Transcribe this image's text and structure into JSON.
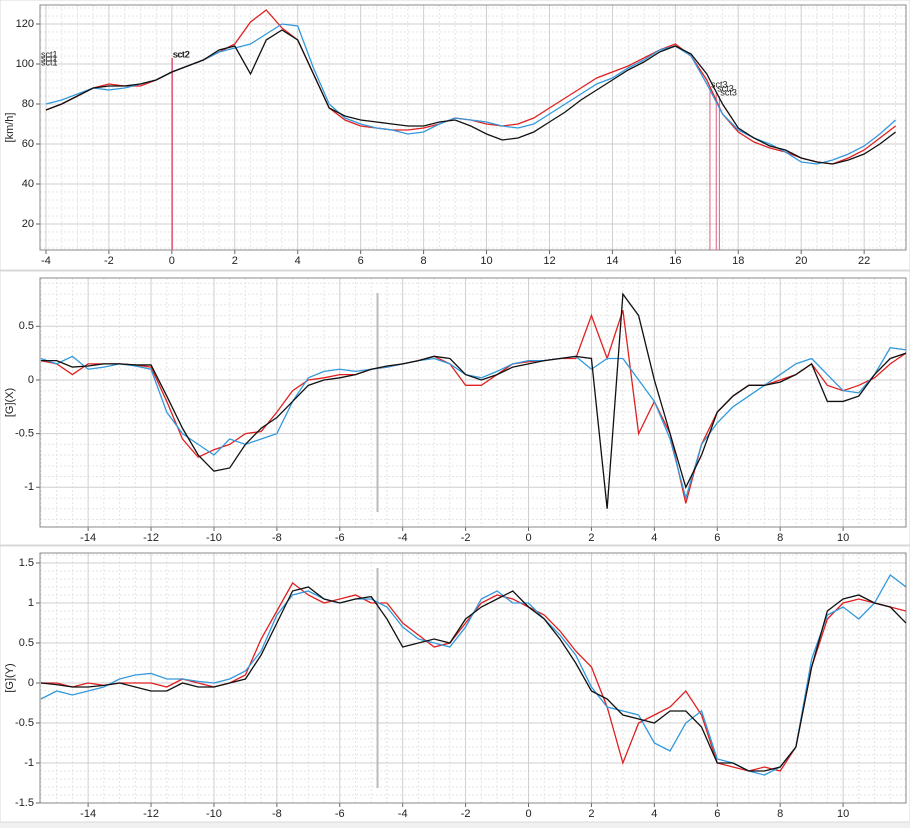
{
  "chart_data": [
    {
      "type": "line",
      "y_label": "[km/h]",
      "grid": true,
      "xlim": [
        -4.19,
        23.33
      ],
      "ylim": [
        7,
        129.5
      ],
      "xticks": [
        -4,
        -2,
        0,
        2,
        4,
        6,
        8,
        10,
        12,
        14,
        16,
        18,
        20,
        22
      ],
      "yticks": [
        20,
        40,
        60,
        80,
        100,
        120
      ],
      "x": [
        -4,
        -3.5,
        -3,
        -2.5,
        -2,
        -1.5,
        -1,
        -0.5,
        0,
        0.5,
        1,
        1.5,
        2,
        2.5,
        3,
        3.5,
        4,
        4.5,
        5,
        5.5,
        6,
        6.5,
        7,
        7.5,
        8,
        8.5,
        9,
        9.5,
        10,
        10.5,
        11,
        11.5,
        12,
        12.5,
        13,
        13.5,
        14,
        14.5,
        15,
        15.5,
        16,
        16.5,
        17,
        17.5,
        18,
        18.5,
        19,
        19.5,
        20,
        20.5,
        21,
        21.5,
        22,
        22.5,
        23
      ],
      "series": [
        {
          "color": "#e02020",
          "values": [
            77,
            80,
            84,
            88,
            90,
            89,
            89,
            92,
            96,
            99,
            102,
            106,
            110,
            121,
            127,
            118,
            112,
            95,
            78,
            72,
            69,
            68,
            67,
            67,
            68,
            70,
            73,
            72,
            70,
            69,
            70,
            73,
            78,
            83,
            88,
            93,
            96,
            99,
            103,
            107,
            110,
            104,
            92,
            75,
            66,
            61,
            58,
            56,
            53,
            51,
            50,
            53,
            57,
            63,
            69
          ]
        },
        {
          "color": "#3399dd",
          "values": [
            80,
            82,
            85,
            88,
            87,
            88,
            90,
            92,
            96,
            99,
            102,
            106,
            108,
            110,
            115,
            120,
            119,
            98,
            80,
            73,
            70,
            68,
            67,
            65,
            66,
            70,
            73,
            72,
            71,
            69,
            68,
            70,
            75,
            80,
            85,
            90,
            93,
            98,
            102,
            107,
            109,
            104,
            90,
            75,
            67,
            63,
            60,
            56,
            51,
            50,
            52,
            55,
            59,
            65,
            72
          ]
        },
        {
          "color": "#111111",
          "values": [
            77,
            80,
            84,
            88,
            89,
            89,
            90,
            92,
            96,
            99,
            102,
            107,
            109,
            95,
            112,
            117,
            112,
            95,
            78,
            74,
            72,
            71,
            70,
            69,
            69,
            71,
            72,
            69,
            65,
            62,
            63,
            66,
            71,
            76,
            82,
            87,
            92,
            97,
            101,
            106,
            109,
            105,
            95,
            80,
            68,
            63,
            59,
            57,
            53,
            51,
            50,
            52,
            55,
            60,
            66
          ]
        }
      ],
      "markers": [
        {
          "label": "sct1",
          "x": -4.19,
          "y": 103
        },
        {
          "label": "sct1",
          "x": -4.19,
          "y": 101
        },
        {
          "label": "sct1",
          "x": -4.19,
          "y": 99
        },
        {
          "label": "sct2",
          "x": 0,
          "y": 103
        },
        {
          "label": "sct2",
          "x": 0.02,
          "y": 103
        },
        {
          "label": "sct3",
          "x": 17.1,
          "y": 88
        },
        {
          "label": "sct3",
          "x": 17.3,
          "y": 86
        },
        {
          "label": "sct3",
          "x": 17.4,
          "y": 84
        }
      ]
    },
    {
      "type": "line",
      "y_label": "[G](X)",
      "grid": true,
      "xlim": [
        -15.53,
        12.0
      ],
      "ylim": [
        -1.37,
        0.95
      ],
      "xticks": [
        -14,
        -12,
        -10,
        -8,
        -6,
        -4,
        -2,
        0,
        2,
        4,
        6,
        8,
        10
      ],
      "yticks": [
        -1,
        -0.5,
        0,
        0.5
      ],
      "cursor_x": -4.8,
      "x": [
        -15.5,
        -15,
        -14.5,
        -14,
        -13.5,
        -13,
        -12.5,
        -12,
        -11.5,
        -11,
        -10.5,
        -10,
        -9.5,
        -9,
        -8.5,
        -8,
        -7.5,
        -7,
        -6.5,
        -6,
        -5.5,
        -5,
        -4.5,
        -4,
        -3.5,
        -3,
        -2.5,
        -2,
        -1.5,
        -1,
        -0.5,
        0,
        0.5,
        1,
        1.5,
        2,
        2.5,
        3,
        3.5,
        4,
        4.5,
        5,
        5.5,
        6,
        6.5,
        7,
        7.5,
        8,
        8.5,
        9,
        9.5,
        10,
        10.5,
        11,
        11.5,
        12
      ],
      "series": [
        {
          "color": "#e02020",
          "values": [
            0.18,
            0.15,
            0.05,
            0.15,
            0.15,
            0.15,
            0.14,
            0.12,
            -0.2,
            -0.55,
            -0.72,
            -0.65,
            -0.6,
            -0.5,
            -0.48,
            -0.3,
            -0.1,
            0.0,
            0.02,
            0.05,
            0.05,
            0.1,
            0.12,
            0.15,
            0.18,
            0.22,
            0.15,
            -0.05,
            -0.05,
            0.05,
            0.15,
            0.17,
            0.18,
            0.2,
            0.2,
            0.6,
            0.2,
            0.65,
            -0.5,
            -0.2,
            -0.5,
            -1.15,
            -0.6,
            -0.3,
            -0.15,
            -0.05,
            -0.05,
            0.0,
            0.05,
            0.15,
            -0.05,
            -0.1,
            -0.05,
            0.02,
            0.15,
            0.25
          ]
        },
        {
          "color": "#3399dd",
          "values": [
            0.2,
            0.15,
            0.22,
            0.1,
            0.12,
            0.15,
            0.13,
            0.1,
            -0.3,
            -0.5,
            -0.6,
            -0.7,
            -0.55,
            -0.6,
            -0.55,
            -0.5,
            -0.2,
            0.02,
            0.08,
            0.1,
            0.08,
            0.1,
            0.12,
            0.15,
            0.18,
            0.2,
            0.15,
            0.05,
            0.02,
            0.08,
            0.15,
            0.18,
            0.18,
            0.2,
            0.22,
            0.1,
            0.2,
            0.2,
            0.0,
            -0.2,
            -0.55,
            -1.1,
            -0.6,
            -0.4,
            -0.25,
            -0.15,
            -0.05,
            0.05,
            0.15,
            0.2,
            0.05,
            -0.1,
            -0.12,
            0.05,
            0.3,
            0.28
          ]
        },
        {
          "color": "#111111",
          "values": [
            0.18,
            0.18,
            0.12,
            0.13,
            0.15,
            0.15,
            0.14,
            0.14,
            -0.15,
            -0.45,
            -0.7,
            -0.85,
            -0.82,
            -0.6,
            -0.45,
            -0.35,
            -0.2,
            -0.05,
            0.0,
            0.02,
            0.05,
            0.1,
            0.13,
            0.15,
            0.18,
            0.22,
            0.2,
            0.05,
            0.0,
            0.05,
            0.12,
            0.15,
            0.18,
            0.2,
            0.22,
            0.2,
            -1.2,
            0.8,
            0.6,
            0.0,
            -0.5,
            -1.0,
            -0.7,
            -0.3,
            -0.15,
            -0.05,
            -0.05,
            -0.02,
            0.05,
            0.15,
            -0.2,
            -0.2,
            -0.15,
            0.05,
            0.2,
            0.25
          ]
        }
      ]
    },
    {
      "type": "line",
      "y_label": "[G](Y)",
      "grid": true,
      "xlim": [
        -15.53,
        12.0
      ],
      "ylim": [
        -1.5,
        1.625
      ],
      "xticks": [
        -14,
        -12,
        -10,
        -8,
        -6,
        -4,
        -2,
        0,
        2,
        4,
        6,
        8,
        10
      ],
      "yticks": [
        -1.5,
        -1,
        -0.5,
        0,
        0.5,
        1,
        1.5
      ],
      "cursor_x": -4.8,
      "x": [
        -15.5,
        -15,
        -14.5,
        -14,
        -13.5,
        -13,
        -12.5,
        -12,
        -11.5,
        -11,
        -10.5,
        -10,
        -9.5,
        -9,
        -8.5,
        -8,
        -7.5,
        -7,
        -6.5,
        -6,
        -5.5,
        -5,
        -4.5,
        -4,
        -3.5,
        -3,
        -2.5,
        -2,
        -1.5,
        -1,
        -0.5,
        0,
        0.5,
        1,
        1.5,
        2,
        2.5,
        3,
        3.5,
        4,
        4.5,
        5,
        5.5,
        6,
        6.5,
        7,
        7.5,
        8,
        8.5,
        9,
        9.5,
        10,
        10.5,
        11,
        11.5,
        12
      ],
      "series": [
        {
          "color": "#e02020",
          "values": [
            0.0,
            0.0,
            -0.05,
            0.0,
            -0.03,
            0.0,
            0.0,
            0.0,
            -0.05,
            0.05,
            0.0,
            -0.05,
            0.0,
            0.1,
            0.55,
            0.9,
            1.25,
            1.1,
            1.0,
            1.05,
            1.1,
            1.0,
            1.0,
            0.75,
            0.6,
            0.45,
            0.5,
            0.75,
            1.0,
            1.1,
            1.05,
            0.95,
            0.85,
            0.65,
            0.4,
            0.2,
            -0.3,
            -1.0,
            -0.5,
            -0.4,
            -0.3,
            -0.1,
            -0.4,
            -1.0,
            -1.05,
            -1.1,
            -1.05,
            -1.1,
            -0.8,
            0.2,
            0.8,
            1.0,
            1.05,
            1.0,
            0.95,
            0.9
          ]
        },
        {
          "color": "#3399dd",
          "values": [
            -0.2,
            -0.1,
            -0.15,
            -0.1,
            -0.05,
            0.05,
            0.1,
            0.12,
            0.05,
            0.05,
            0.02,
            0.0,
            0.05,
            0.15,
            0.4,
            0.85,
            1.1,
            1.15,
            1.05,
            1.0,
            1.05,
            1.05,
            0.95,
            0.7,
            0.55,
            0.5,
            0.45,
            0.7,
            1.05,
            1.15,
            1.0,
            1.0,
            0.8,
            0.6,
            0.35,
            -0.05,
            -0.3,
            -0.35,
            -0.4,
            -0.75,
            -0.85,
            -0.5,
            -0.35,
            -0.95,
            -1.0,
            -1.1,
            -1.15,
            -1.05,
            -0.8,
            0.3,
            0.85,
            0.95,
            0.8,
            1.0,
            1.35,
            1.2
          ]
        },
        {
          "color": "#111111",
          "values": [
            0.0,
            -0.02,
            -0.05,
            -0.05,
            -0.03,
            0.0,
            -0.05,
            -0.1,
            -0.1,
            0.0,
            -0.05,
            -0.05,
            0.0,
            0.05,
            0.35,
            0.75,
            1.15,
            1.2,
            1.05,
            1.0,
            1.05,
            1.08,
            0.8,
            0.45,
            0.5,
            0.55,
            0.5,
            0.8,
            0.95,
            1.05,
            1.15,
            0.95,
            0.8,
            0.55,
            0.25,
            -0.1,
            -0.2,
            -0.4,
            -0.45,
            -0.5,
            -0.35,
            -0.35,
            -0.55,
            -1.0,
            -1.0,
            -1.1,
            -1.1,
            -1.05,
            -0.8,
            0.2,
            0.9,
            1.05,
            1.1,
            1.0,
            0.95,
            0.75
          ]
        }
      ]
    }
  ]
}
